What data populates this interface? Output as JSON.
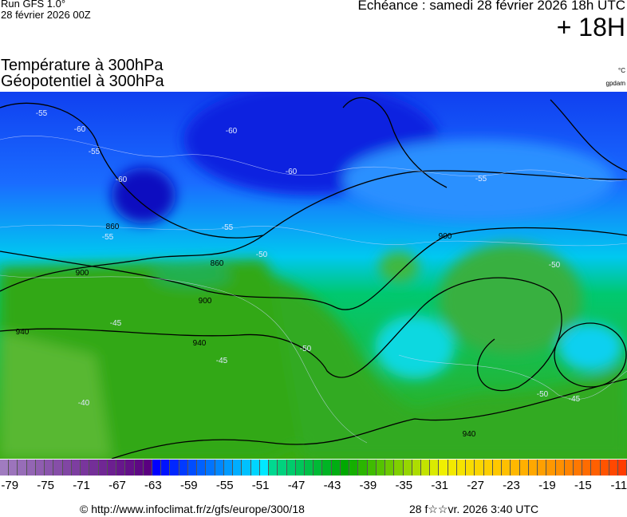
{
  "header": {
    "run": "Run GFS 1.0°",
    "run_date": "28 février 2026 00Z",
    "valid": "Echéance : samedi 28 février 2026 18h UTC",
    "lead": "+ 18H",
    "title1": "Température à 300hPa",
    "title2": "Géopotentiel à 300hPa",
    "unit1": "°C",
    "unit2": "gpdam"
  },
  "map": {
    "geopotential_labels": [
      "860",
      "860",
      "900",
      "900",
      "900",
      "940",
      "940",
      "940"
    ],
    "temperature_labels": [
      "-55",
      "-60",
      "-55",
      "-60",
      "-60",
      "-60",
      "-55",
      "-55",
      "-50",
      "-50",
      "-45",
      "-40",
      "-45",
      "-50",
      "-45",
      "-50",
      "-55"
    ]
  },
  "colorbar": {
    "min": -80,
    "max": -10,
    "tick_labels": [
      "-79",
      "-75",
      "-71",
      "-67",
      "-63",
      "-59",
      "-55",
      "-51",
      "-47",
      "-43",
      "-39",
      "-35",
      "-31",
      "-27",
      "-23",
      "-19",
      "-15",
      "-11"
    ],
    "color_stops": [
      {
        "t": -80,
        "c": "#a07cc0"
      },
      {
        "t": -64,
        "c": "#5a0080"
      },
      {
        "t": -63,
        "c": "#0000ff"
      },
      {
        "t": -51,
        "c": "#00e8ff"
      },
      {
        "t": -50,
        "c": "#00d890"
      },
      {
        "t": -42,
        "c": "#00a800"
      },
      {
        "t": -36,
        "c": "#80d000"
      },
      {
        "t": -31,
        "c": "#f0f000"
      },
      {
        "t": -25,
        "c": "#ffc800"
      },
      {
        "t": -18,
        "c": "#ff9000"
      },
      {
        "t": -10,
        "c": "#ff3000"
      }
    ]
  },
  "footer": {
    "url": "© http://www.infoclimat.fr/z/gfs/europe/300/18",
    "generated": "28 f☆☆vr. 2026  3:40 UTC"
  }
}
